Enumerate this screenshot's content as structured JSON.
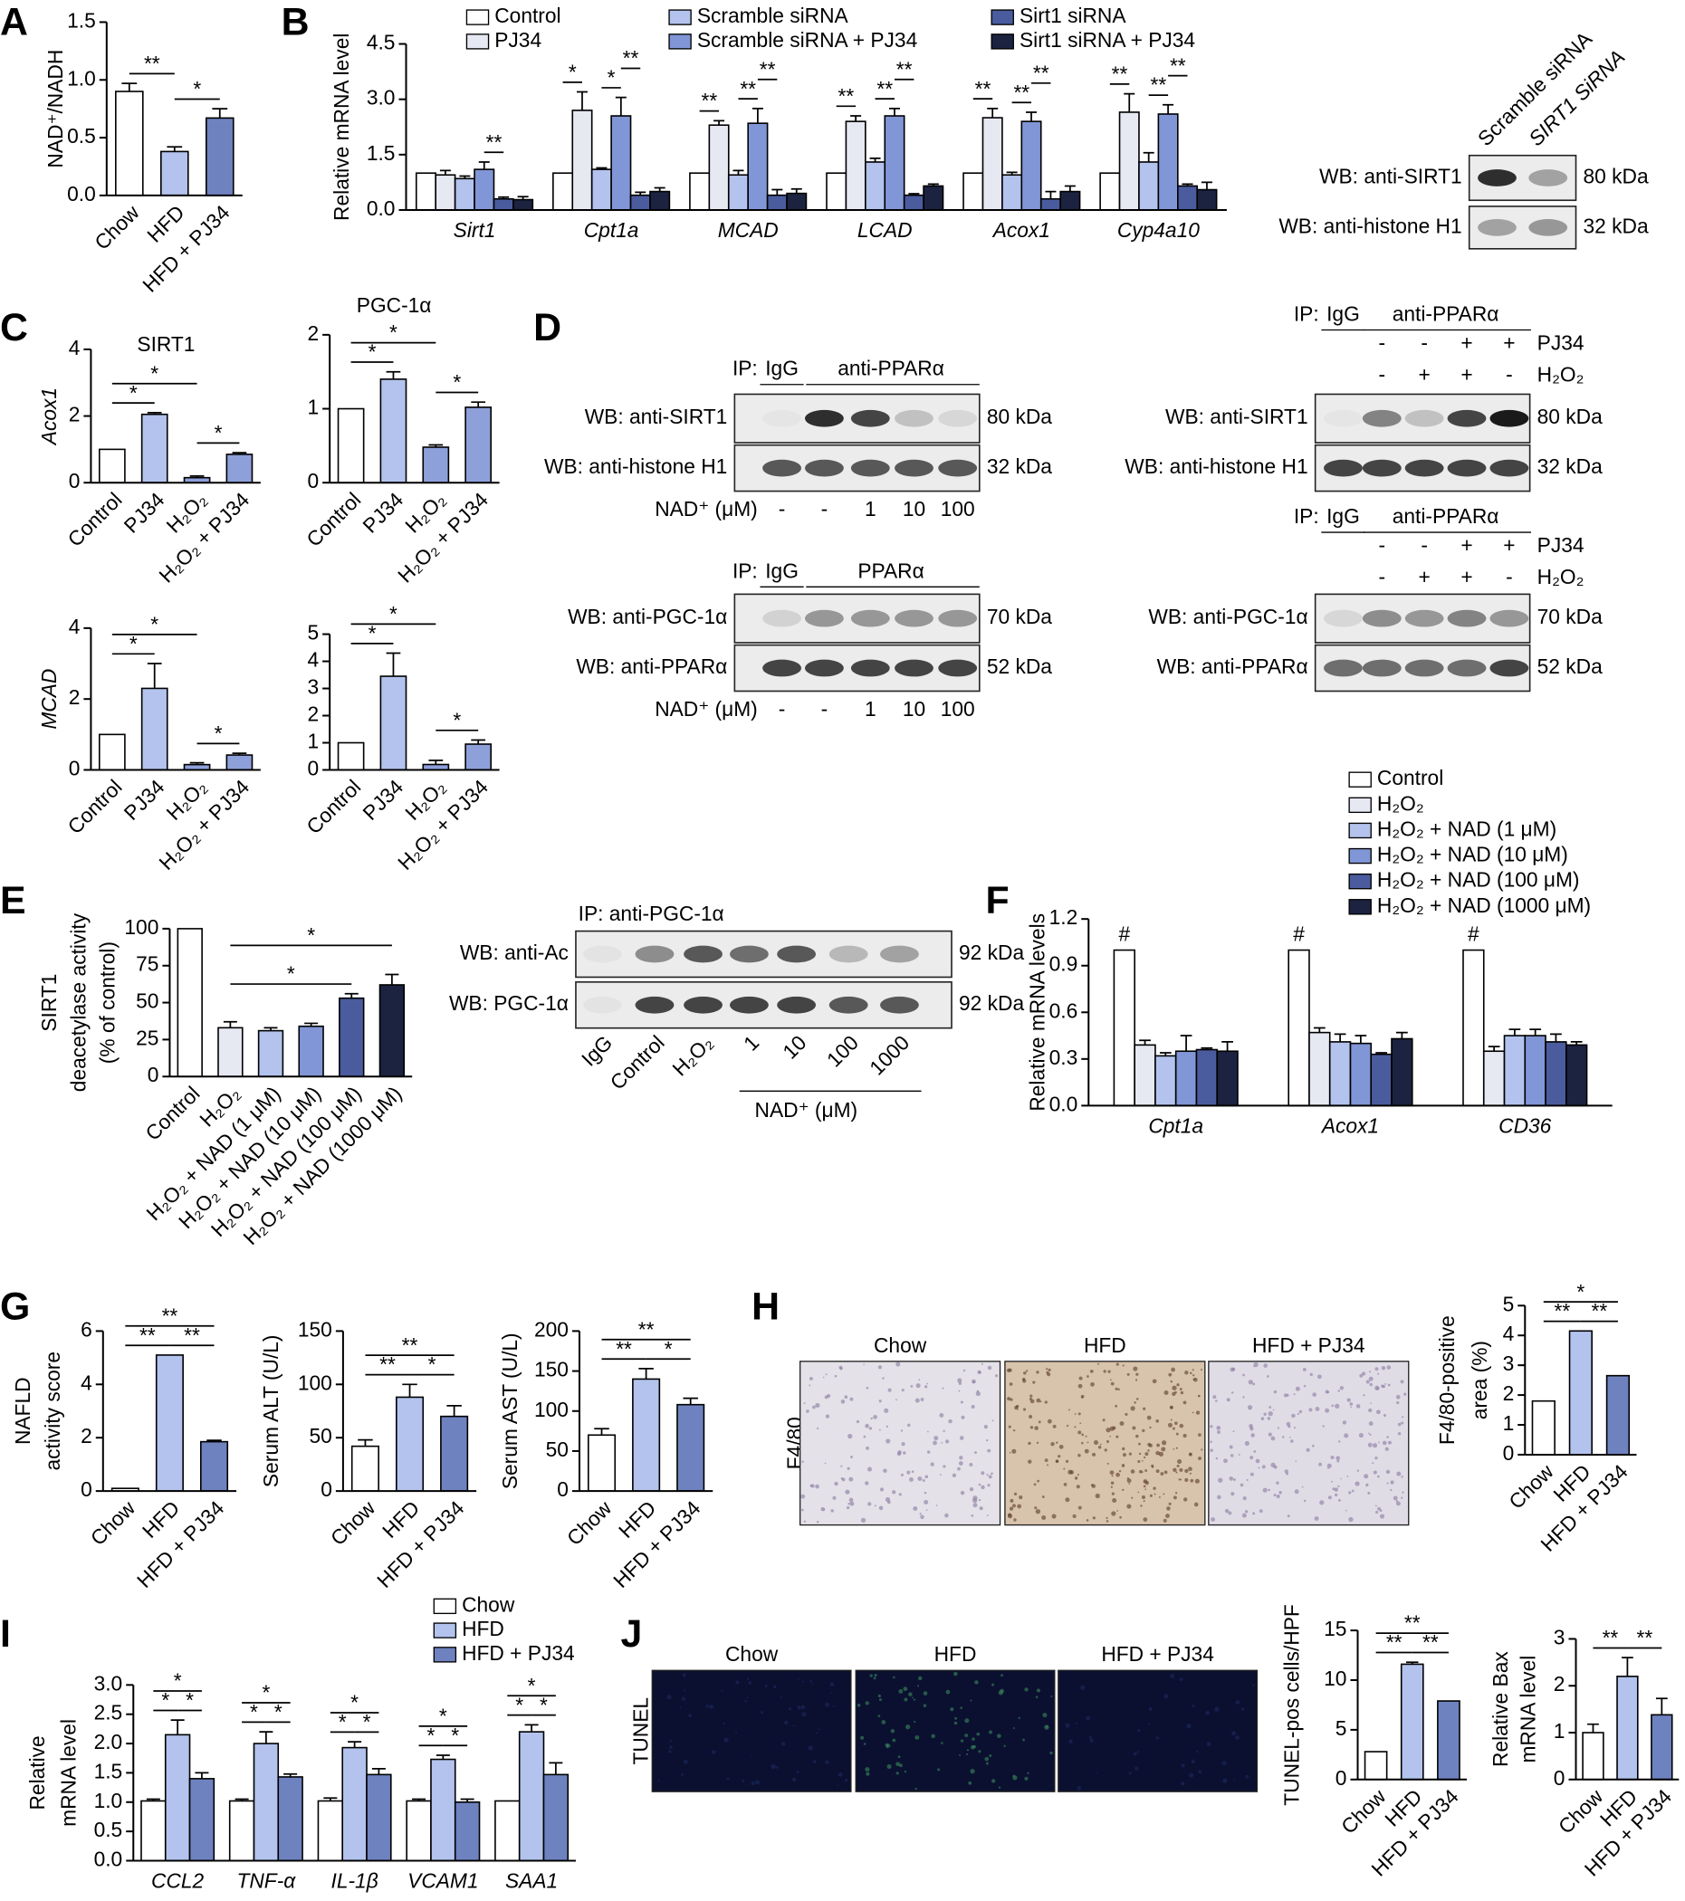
{
  "panels": [
    "A",
    "B",
    "C",
    "D",
    "E",
    "F",
    "G",
    "H",
    "I",
    "J"
  ],
  "chart_data": [
    {
      "type": "bar",
      "ylabel": "NAD⁺/NADH",
      "categories": [
        "Chow",
        "HFD",
        "HFD + PJ34"
      ],
      "values": [
        0.9,
        0.38,
        0.67
      ],
      "errors": [
        0.07,
        0.04,
        0.08
      ],
      "colors": [
        "#ffffff",
        "#b3c3ee",
        "#6f82c0"
      ],
      "ylim": [
        0,
        1.5
      ],
      "yticks": [
        {
          "value": 0,
          "label": "0.0"
        },
        0.5,
        {
          "value": 1,
          "label": "1.0"
        },
        1.5
      ],
      "annotations": [
        "**",
        "*"
      ]
    },
    {
      "type": "grouped_bar",
      "ylabel": "Relative mRNA level",
      "categories": [
        "Sirt1",
        "Cpt1a",
        "MCAD",
        "LCAD",
        "Acox1",
        "Cyp4a10"
      ],
      "ylim": [
        0,
        4.5
      ],
      "yticks": [
        {
          "value": 0,
          "label": "0.0"
        },
        1.5,
        {
          "value": 3,
          "label": "3.0"
        },
        4.5
      ],
      "series": [
        {
          "name": "Control",
          "color": "#ffffff",
          "values": [
            1,
            1,
            1,
            1,
            1,
            1
          ],
          "errors": [
            null,
            null,
            null,
            null,
            null,
            null
          ]
        },
        {
          "name": "PJ34",
          "color": "#e6e8f2",
          "values": [
            0.95,
            2.7,
            2.3,
            2.4,
            2.5,
            2.65
          ],
          "errors": [
            0.12,
            0.5,
            0.12,
            0.15,
            0.25,
            0.5
          ]
        },
        {
          "name": "Scramble siRNA",
          "color": "#b3c3ee",
          "values": [
            0.85,
            1.1,
            0.95,
            1.3,
            0.95,
            1.3
          ],
          "errors": [
            0.07,
            0.04,
            0.12,
            0.1,
            0.07,
            0.25
          ]
        },
        {
          "name": "Scramble siRNA + PJ34",
          "color": "#8196d6",
          "values": [
            1.1,
            2.55,
            2.35,
            2.55,
            2.4,
            2.6
          ],
          "errors": [
            0.2,
            0.5,
            0.4,
            0.2,
            0.25,
            0.25
          ]
        },
        {
          "name": "Sirt1 siRNA",
          "color": "#4a5c9e",
          "values": [
            0.3,
            0.4,
            0.4,
            0.4,
            0.3,
            0.65
          ],
          "errors": [
            0.05,
            0.08,
            0.15,
            0.04,
            0.2,
            0.05
          ]
        },
        {
          "name": "Sirt1 siRNA + PJ34",
          "color": "#1c2340",
          "values": [
            0.28,
            0.5,
            0.45,
            0.65,
            0.5,
            0.55
          ],
          "errors": [
            0.08,
            0.1,
            0.12,
            0.05,
            0.15,
            0.2
          ]
        }
      ],
      "annotations": [
        "**",
        "*",
        "*",
        "**",
        "**",
        "**",
        "**",
        "**",
        "**",
        "**",
        "**",
        "**",
        "**",
        "**",
        "**",
        "**"
      ]
    },
    {
      "type": "bar",
      "title": "SIRT1",
      "ylabel": "Acox1",
      "categories": [
        "Control",
        "PJ34",
        "H₂O₂",
        "H₂O₂ + PJ34"
      ],
      "values": [
        1,
        2.05,
        0.15,
        0.85
      ],
      "errors": [
        null,
        0.05,
        0.05,
        0.05
      ],
      "colors": [
        "#ffffff",
        "#b3c3ee",
        "#8ea0da",
        "#8ea0da"
      ],
      "ylim": [
        0,
        4
      ],
      "yticks": [
        0,
        2,
        4
      ],
      "annotations": [
        "*",
        "*",
        "*"
      ]
    },
    {
      "type": "bar",
      "title": "PGC-1α",
      "categories": [
        "Control",
        "PJ34",
        "H₂O₂",
        "H₂O₂ + PJ34"
      ],
      "values": [
        1,
        1.4,
        0.48,
        1.02
      ],
      "errors": [
        null,
        0.1,
        0.03,
        0.07
      ],
      "colors": [
        "#ffffff",
        "#b3c3ee",
        "#8ea0da",
        "#8ea0da"
      ],
      "ylim": [
        0,
        2
      ],
      "yticks": [
        0,
        1,
        2
      ],
      "annotations": [
        "*",
        "*",
        "*"
      ]
    },
    {
      "type": "bar",
      "ylabel": "MCAD",
      "categories": [
        "Control",
        "PJ34",
        "H₂O₂",
        "H₂O₂ + PJ34"
      ],
      "values": [
        1,
        2.3,
        0.15,
        0.42
      ],
      "errors": [
        null,
        0.7,
        0.05,
        0.05
      ],
      "colors": [
        "#ffffff",
        "#b3c3ee",
        "#8ea0da",
        "#8ea0da"
      ],
      "ylim": [
        0,
        4
      ],
      "yticks": [
        0,
        2,
        4
      ],
      "annotations": [
        "*",
        "*",
        "*"
      ]
    },
    {
      "type": "bar",
      "categories": [
        "Control",
        "PJ34",
        "H₂O₂",
        "H₂O₂ + PJ34"
      ],
      "values": [
        1,
        3.45,
        0.2,
        0.95
      ],
      "errors": [
        null,
        0.85,
        0.15,
        0.15
      ],
      "colors": [
        "#ffffff",
        "#b3c3ee",
        "#8ea0da",
        "#8ea0da"
      ],
      "ylim": [
        0,
        5
      ],
      "yticks": [
        0,
        1,
        2,
        3,
        4,
        5
      ],
      "annotations": [
        "*",
        "*",
        "*"
      ]
    },
    {
      "type": "bar",
      "ylabel": [
        "SIRT1",
        "deacetylase activity",
        "(% of control)"
      ],
      "categories": [
        "Control",
        "H₂O₂",
        "H₂O₂ + NAD (1 μM)",
        "H₂O₂ + NAD (10 μM)",
        "H₂O₂ + NAD (100 μM)",
        "H₂O₂ + NAD (1000 μM)"
      ],
      "values": [
        100,
        33,
        31,
        34,
        53,
        62
      ],
      "errors": [
        null,
        4,
        2,
        2,
        3,
        7
      ],
      "colors": [
        "#ffffff",
        "#e6e8f2",
        "#b3c3ee",
        "#8196d6",
        "#4a5c9e",
        "#1c2340"
      ],
      "ylim": [
        0,
        100
      ],
      "yticks": [
        0,
        25,
        50,
        75,
        100
      ],
      "annotations": [
        "*",
        "*"
      ]
    },
    {
      "type": "grouped_bar",
      "ylabel": "Relative mRNA levels",
      "categories": [
        "Cpt1a",
        "Acox1",
        "CD36"
      ],
      "ylim": [
        0,
        1.2
      ],
      "yticks": [
        {
          "value": 0,
          "label": "0.0"
        },
        0.3,
        0.6,
        0.9,
        1.2
      ],
      "series": [
        {
          "name": "Control",
          "color": "#ffffff",
          "values": [
            1,
            1,
            1
          ],
          "errors": [
            null,
            null,
            null
          ]
        },
        {
          "name": "H₂O₂",
          "color": "#e6e8f2",
          "values": [
            0.39,
            0.47,
            0.35
          ],
          "errors": [
            0.03,
            0.03,
            0.03
          ]
        },
        {
          "name": "H₂O₂ + NAD (1 μM)",
          "color": "#b3c3ee",
          "values": [
            0.32,
            0.41,
            0.45
          ],
          "errors": [
            0.02,
            0.05,
            0.04
          ]
        },
        {
          "name": "H₂O₂ + NAD (10 μM)",
          "color": "#8196d6",
          "values": [
            0.35,
            0.4,
            0.45
          ],
          "errors": [
            0.1,
            0.05,
            0.04
          ]
        },
        {
          "name": "H₂O₂ + NAD (100 μM)",
          "color": "#4a5c9e",
          "values": [
            0.36,
            0.33,
            0.41
          ],
          "errors": [
            0.01,
            0.01,
            0.05
          ]
        },
        {
          "name": "H₂O₂ + NAD (1000 μM)",
          "color": "#1c2340",
          "values": [
            0.35,
            0.43,
            0.39
          ],
          "errors": [
            0.06,
            0.04,
            0.02
          ]
        }
      ],
      "annotations": [
        "#",
        "#",
        "#"
      ]
    },
    {
      "type": "bar",
      "ylabel": [
        "NAFLD",
        "activity score"
      ],
      "categories": [
        "Chow",
        "HFD",
        "HFD + PJ34"
      ],
      "values": [
        0.1,
        5.1,
        1.85
      ],
      "errors": [
        null,
        null,
        0.05
      ],
      "colors": [
        "#ffffff",
        "#b3c3ee",
        "#6f82c0"
      ],
      "ylim": [
        0,
        6
      ],
      "yticks": [
        0,
        2,
        4,
        6
      ],
      "annotations": [
        "**",
        "**",
        "**"
      ]
    },
    {
      "type": "bar",
      "ylabel": "Serum ALT (U/L)",
      "categories": [
        "Chow",
        "HFD",
        "HFD + PJ34"
      ],
      "values": [
        42,
        88,
        70
      ],
      "errors": [
        6,
        12,
        10
      ],
      "colors": [
        "#ffffff",
        "#b3c3ee",
        "#6f82c0"
      ],
      "ylim": [
        0,
        150
      ],
      "yticks": [
        0,
        50,
        100,
        150
      ],
      "annotations": [
        "**",
        "*",
        "**"
      ]
    },
    {
      "type": "bar",
      "ylabel": "Serum AST (U/L)",
      "categories": [
        "Chow",
        "HFD",
        "HFD + PJ34"
      ],
      "values": [
        70,
        140,
        108
      ],
      "errors": [
        8,
        13,
        8
      ],
      "colors": [
        "#ffffff",
        "#b3c3ee",
        "#6f82c0"
      ],
      "ylim": [
        0,
        200
      ],
      "yticks": [
        0,
        50,
        100,
        150,
        200
      ],
      "annotations": [
        "**",
        "*",
        "**"
      ]
    },
    {
      "type": "bar",
      "ylabel": [
        "F4/80-positive",
        "area (%)"
      ],
      "categories": [
        "Chow",
        "HFD",
        "HFD + PJ34"
      ],
      "values": [
        1.8,
        4.15,
        2.65
      ],
      "colors": [
        "#ffffff",
        "#b3c3ee",
        "#6f82c0"
      ],
      "ylim": [
        0,
        5
      ],
      "yticks": [
        0,
        1,
        2,
        3,
        4,
        5
      ],
      "annotations": [
        "**",
        "**",
        "*"
      ]
    },
    {
      "type": "grouped_bar",
      "ylabel": [
        "Relative",
        "mRNA level"
      ],
      "categories": [
        "CCL2",
        "TNF-α",
        "IL-1β",
        "VCAM1",
        "SAA1"
      ],
      "ylim": [
        0,
        3
      ],
      "yticks": [
        {
          "value": 0,
          "label": "0.0"
        },
        0.5,
        {
          "value": 1,
          "label": "1.0"
        },
        1.5,
        {
          "value": 2,
          "label": "2.0"
        },
        2.5,
        {
          "value": 3,
          "label": "3.0"
        }
      ],
      "series": [
        {
          "name": "Chow",
          "color": "#ffffff",
          "values": [
            1.02,
            1.02,
            1.02,
            1.02,
            1.02
          ],
          "errors": [
            0.03,
            0.03,
            0.05,
            0.03,
            null
          ]
        },
        {
          "name": "HFD",
          "color": "#b3c3ee",
          "values": [
            2.15,
            2.0,
            1.93,
            1.73,
            2.2
          ],
          "errors": [
            0.25,
            0.2,
            0.1,
            0.07,
            0.12
          ]
        },
        {
          "name": "HFD + PJ34",
          "color": "#6f82c0",
          "values": [
            1.4,
            1.43,
            1.47,
            1.0,
            1.47
          ],
          "errors": [
            0.1,
            0.05,
            0.1,
            0.05,
            0.2
          ]
        }
      ],
      "annotations": [
        "*",
        "*",
        "*",
        "*",
        "*",
        "*",
        "*",
        "*",
        "*",
        "*",
        "*",
        "*",
        "*",
        "*",
        "*"
      ]
    },
    {
      "type": "bar",
      "ylabel": "TUNEL-pos cells/HPF",
      "categories": [
        "Chow",
        "HFD",
        "HFD + PJ34"
      ],
      "values": [
        2.8,
        11.6,
        7.9
      ],
      "errors": [
        null,
        0.2,
        null
      ],
      "colors": [
        "#ffffff",
        "#b3c3ee",
        "#6f82c0"
      ],
      "ylim": [
        0,
        15
      ],
      "yticks": [
        0,
        5,
        10,
        15
      ],
      "annotations": [
        "**",
        "**",
        "**"
      ]
    },
    {
      "type": "bar",
      "ylabel": [
        "Relative Bax",
        "mRNA level"
      ],
      "categories": [
        "Chow",
        "HFD",
        "HFD + PJ34"
      ],
      "values": [
        1,
        2.2,
        1.38
      ],
      "errors": [
        0.18,
        0.4,
        0.35
      ],
      "colors": [
        "#ffffff",
        "#b3c3ee",
        "#6f82c0"
      ],
      "ylim": [
        0,
        3
      ],
      "yticks": [
        0,
        1,
        2,
        3
      ],
      "annotations": [
        "**",
        "**"
      ]
    }
  ],
  "blots": [
    {
      "lanes": [
        "Scramble siRNA",
        "SIRT1 SiRNA"
      ],
      "rows": [
        "WB: anti-SIRT1",
        "WB: anti-histone H1"
      ],
      "sizes": [
        "80 kDa",
        "32 kDa"
      ]
    },
    {
      "header": [
        "IP:",
        "IgG",
        "anti-PPARα"
      ],
      "rows": [
        "WB: anti-SIRT1",
        "WB: anti-histone H1"
      ],
      "sizes": [
        "80 kDa",
        "32 kDa"
      ],
      "treatments": [
        {
          "name": "NAD⁺ (μM)",
          "lanes": [
            "-",
            "-",
            "1",
            "10",
            "100"
          ]
        }
      ]
    },
    {
      "header": [
        "IP:",
        "IgG",
        "PPARα"
      ],
      "rows": [
        "WB: anti-PGC-1α",
        "WB: anti-PPARα"
      ],
      "sizes": [
        "70 kDa",
        "52 kDa"
      ],
      "treatments": [
        {
          "name": "NAD⁺ (μM)",
          "lanes": [
            "-",
            "-",
            "1",
            "10",
            "100"
          ]
        }
      ]
    },
    {
      "header": [
        "IP:",
        "IgG",
        "anti-PPARα"
      ],
      "rows": [
        "WB: anti-SIRT1",
        "WB: anti-histone H1"
      ],
      "sizes": [
        "80 kDa",
        "32 kDa"
      ],
      "treatments": [
        {
          "name": "PJ34",
          "lanes": [
            "-",
            "-",
            "+",
            "+"
          ]
        },
        {
          "name": "H₂O₂",
          "lanes": [
            "-",
            "+",
            "+",
            "-"
          ]
        }
      ]
    },
    {
      "header": [
        "IP:",
        "IgG",
        "anti-PPARα"
      ],
      "rows": [
        "WB: anti-PGC-1α",
        "WB: anti-PPARα"
      ],
      "sizes": [
        "70 kDa",
        "52 kDa"
      ],
      "treatments": [
        {
          "name": "PJ34",
          "lanes": [
            "-",
            "-",
            "+",
            "+"
          ]
        },
        {
          "name": "H₂O₂",
          "lanes": [
            "-",
            "+",
            "+",
            "-"
          ]
        }
      ]
    },
    {
      "header": [
        "IP: anti-PGC-1α"
      ],
      "rows": [
        "WB: anti-Ac",
        "WB: PGC-1α"
      ],
      "sizes": [
        "92 kDa",
        "92 kDa"
      ],
      "lanes": [
        "IgG",
        "Control",
        "H₂O₂",
        "1",
        "10",
        "100",
        "1000"
      ],
      "group_label": "NAD⁺ (μM)"
    }
  ],
  "micrographs": [
    {
      "label": "F4/80",
      "titles": [
        "Chow",
        "HFD",
        "HFD + PJ34"
      ]
    },
    {
      "label": "TUNEL",
      "titles": [
        "Chow",
        "HFD",
        "HFD + PJ34"
      ]
    }
  ]
}
